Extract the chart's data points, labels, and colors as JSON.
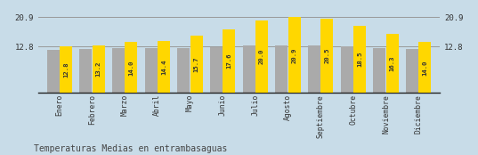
{
  "months": [
    "Enero",
    "Febrero",
    "Marzo",
    "Abril",
    "Mayo",
    "Junio",
    "Julio",
    "Agosto",
    "Septiembre",
    "Octubre",
    "Noviembre",
    "Diciembre"
  ],
  "values": [
    12.8,
    13.2,
    14.0,
    14.4,
    15.7,
    17.6,
    20.0,
    20.9,
    20.5,
    18.5,
    16.3,
    14.0
  ],
  "gray_values": [
    12.0,
    12.1,
    12.3,
    12.3,
    12.4,
    12.6,
    13.0,
    13.2,
    13.0,
    12.8,
    12.4,
    12.2
  ],
  "bar_color_yellow": "#FFD700",
  "bar_color_gray": "#AAAAAA",
  "bg_color": "#C8DCE8",
  "ymin": 0,
  "ymax": 23.5,
  "hline1": 20.9,
  "hline2": 12.8,
  "hline_color": "#999999",
  "title": "Temperaturas Medias en entrambasaguas",
  "title_fontsize": 7.0,
  "bar_width": 0.38,
  "value_fontsize": 5.2,
  "label_fontsize": 5.8,
  "axis_label_fontsize": 6.5,
  "ytick_label_left": [
    "12.8",
    "20.9"
  ],
  "ytick_label_right": [
    "12.8",
    "20.9"
  ]
}
